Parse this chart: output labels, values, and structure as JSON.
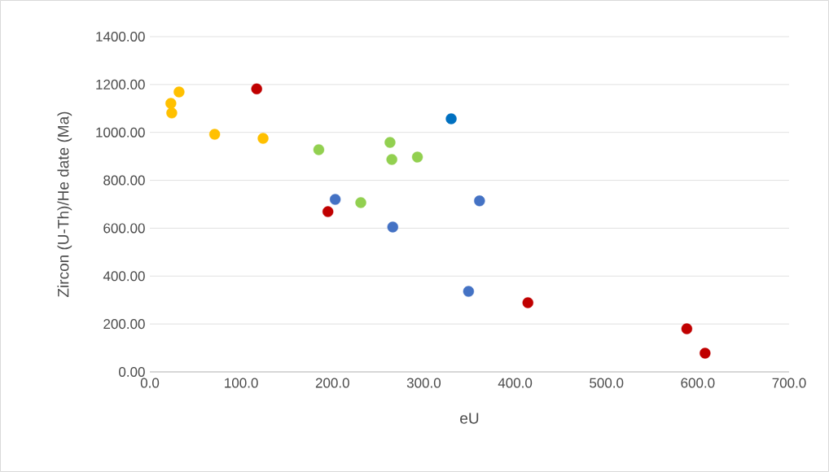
{
  "chart_data": {
    "type": "scatter",
    "xlabel": "eU",
    "ylabel": "Zircon (U-Th)/He date (Ma)",
    "series": [
      {
        "color": "#ffc000",
        "x": [
          23,
          32,
          24,
          71,
          124
        ],
        "values": [
          1121,
          1169,
          1081,
          992,
          975
        ]
      },
      {
        "color": "#c00000",
        "x": [
          117,
          195,
          414,
          588,
          608
        ],
        "values": [
          1182,
          669,
          289,
          180,
          78
        ]
      },
      {
        "color": "#92d050",
        "x": [
          185,
          263,
          265,
          293,
          231
        ],
        "values": [
          928,
          958,
          887,
          897,
          707
        ]
      },
      {
        "color": "#4472c4",
        "x": [
          203,
          266,
          361,
          349
        ],
        "values": [
          720,
          605,
          714,
          336
        ]
      },
      {
        "color": "#0070c0",
        "x": [
          330
        ],
        "values": [
          1057
        ]
      }
    ],
    "xlim": [
      0,
      700
    ],
    "xticks": [
      {
        "value": 0,
        "label": "0.0"
      },
      {
        "value": 100,
        "label": "100.0"
      },
      {
        "value": 200,
        "label": "200.0"
      },
      {
        "value": 300,
        "label": "300.0"
      },
      {
        "value": 400,
        "label": "400.0"
      },
      {
        "value": 500,
        "label": "500.0"
      },
      {
        "value": 600,
        "label": "600.0"
      },
      {
        "value": 700,
        "label": "700.0"
      }
    ],
    "ylim": [
      0,
      1400
    ],
    "yticks": [
      {
        "value": 0,
        "label": "0.00"
      },
      {
        "value": 200,
        "label": "200.00"
      },
      {
        "value": 400,
        "label": "400.00"
      },
      {
        "value": 600,
        "label": "600.00"
      },
      {
        "value": 800,
        "label": "800.00"
      },
      {
        "value": 1000,
        "label": "1000.00"
      },
      {
        "value": 1200,
        "label": "1200.00"
      },
      {
        "value": 1400,
        "label": "1400.00"
      }
    ],
    "grid": "y"
  }
}
